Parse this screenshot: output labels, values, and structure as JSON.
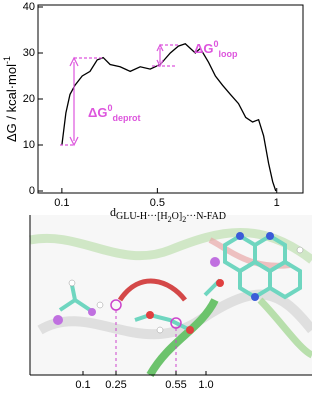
{
  "chart_data": {
    "type": "line",
    "y_label": {
      "text": "ΔG / kcal·mol",
      "sup": "-1"
    },
    "x_label": [
      {
        "text": "d"
      },
      {
        "sub": "GLU-H···[H"
      },
      {
        "sub2": "2"
      },
      {
        "sub": "O]"
      },
      {
        "sub2": "2"
      },
      {
        "sub": "···N-FAD"
      }
    ],
    "x": [
      0.1,
      0.117,
      0.134,
      0.155,
      0.185,
      0.218,
      0.248,
      0.273,
      0.302,
      0.344,
      0.386,
      0.428,
      0.47,
      0.512,
      0.554,
      0.588,
      0.617,
      0.638,
      0.659,
      0.68,
      0.714,
      0.743,
      0.773,
      0.806,
      0.84,
      0.87,
      0.899,
      0.924,
      0.945,
      0.966,
      0.983,
      0.996
    ],
    "series": [
      {
        "color": "#000000",
        "values": [
          10,
          17,
          21,
          23,
          25,
          26,
          28.5,
          29,
          27.5,
          27,
          26,
          27,
          26.5,
          27.5,
          30,
          31.5,
          32,
          31,
          30,
          31,
          28,
          25,
          23,
          21,
          19,
          16,
          15,
          15.5,
          12,
          6,
          2,
          0
        ]
      }
    ],
    "xlim": [
      0,
      1.11
    ],
    "ylim": [
      0,
      40
    ],
    "xticks": [
      0.1,
      0.5,
      1
    ],
    "yticks": [
      0,
      10,
      20,
      30,
      40
    ],
    "annotations": [
      {
        "text": "ΔG",
        "sup": "0",
        "sub": "deprot"
      },
      {
        "text": "ΔG",
        "sup": "0",
        "sub": "loop"
      }
    ],
    "annotation_color": "#dd55dd"
  },
  "inset": {
    "xtick_labels": [
      "0.1",
      "0.25",
      "0.55",
      "1.0"
    ]
  }
}
